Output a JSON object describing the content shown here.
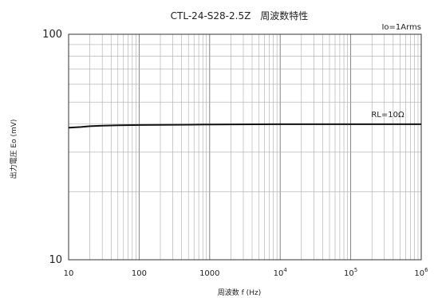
{
  "chart_data": {
    "type": "line",
    "title": "CTL-24-S28-2.5Z　周波数特性",
    "condition_label": "Io=1Arms",
    "xlabel": "周波数 f (Hz)",
    "ylabel": "出力電圧 Eo (mV)",
    "x_scale": "log",
    "y_scale": "log",
    "xlim": [
      10,
      1000000
    ],
    "ylim": [
      10,
      100
    ],
    "x_tick_labels": [
      {
        "value": 10,
        "label": "10"
      },
      {
        "value": 100,
        "label": "100"
      },
      {
        "value": 1000,
        "label": "1000"
      },
      {
        "value": 10000,
        "label": "10",
        "exp": "4"
      },
      {
        "value": 100000,
        "label": "10",
        "exp": "5"
      },
      {
        "value": 1000000,
        "label": "10",
        "exp": "6"
      }
    ],
    "y_tick_labels": [
      {
        "value": 100,
        "label": "100"
      },
      {
        "value": 10,
        "label": "10"
      }
    ],
    "grid": true,
    "series": [
      {
        "name": "RL=10Ω",
        "x": [
          10,
          15,
          20,
          30,
          50,
          100,
          500,
          1000,
          10000,
          100000,
          1000000
        ],
        "y": [
          38.5,
          38.8,
          39.1,
          39.3,
          39.5,
          39.6,
          39.7,
          39.8,
          39.9,
          39.9,
          39.9
        ]
      }
    ]
  }
}
